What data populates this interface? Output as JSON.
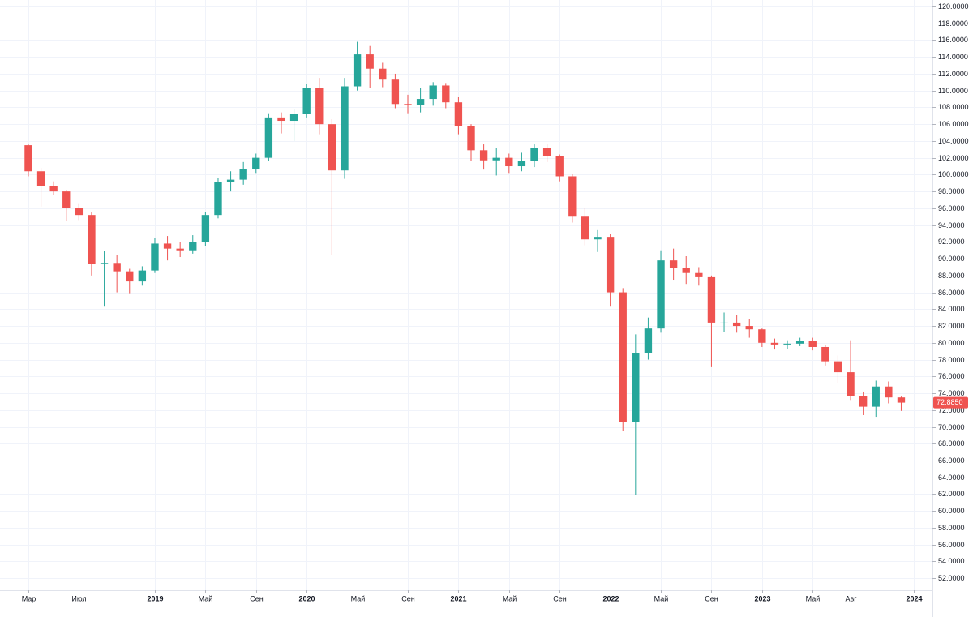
{
  "chart_data": {
    "type": "candlestick",
    "up_color": "#26a69a",
    "down_color": "#ef5350",
    "grid": true,
    "open": [
      103.5,
      100.4,
      98.6,
      98.0,
      96.0,
      95.2,
      89.4,
      89.5,
      88.5,
      87.3,
      88.6,
      91.8,
      91.2,
      91.0,
      92.0,
      95.2,
      99.1,
      99.4,
      100.7,
      102.0,
      106.8,
      106.4,
      107.2,
      110.3,
      106.0,
      100.5,
      110.5,
      114.3,
      112.6,
      111.3,
      108.4,
      108.3,
      109.0,
      110.6,
      108.6,
      105.8,
      102.9,
      101.7,
      102.0,
      101.0,
      101.6,
      103.2,
      102.2,
      99.8,
      95.0,
      92.3,
      92.6,
      86.0,
      70.6,
      78.8,
      81.7,
      89.8,
      88.9,
      88.3,
      87.8,
      82.4,
      82.4,
      82.0,
      81.6,
      80.0,
      79.8,
      79.9,
      80.2,
      79.5,
      77.8,
      76.5,
      73.7,
      72.4,
      74.8,
      73.5
    ],
    "high": [
      103.6,
      100.8,
      99.2,
      98.2,
      96.6,
      95.5,
      90.9,
      90.4,
      88.8,
      89.1,
      92.5,
      92.7,
      92.0,
      92.8,
      95.6,
      99.6,
      100.4,
      101.5,
      102.5,
      107.3,
      107.4,
      107.8,
      110.8,
      111.5,
      106.6,
      111.5,
      115.8,
      115.3,
      113.3,
      112.0,
      109.5,
      110.3,
      111.0,
      110.9,
      109.2,
      106.0,
      103.6,
      103.2,
      102.5,
      102.6,
      103.6,
      103.6,
      102.4,
      100.1,
      96.0,
      93.4,
      93.0,
      86.5,
      81.0,
      83.0,
      91.0,
      91.2,
      90.3,
      89.0,
      88.0,
      83.6,
      83.3,
      82.8,
      81.7,
      80.5,
      80.3,
      80.6,
      80.6,
      79.7,
      78.5,
      80.3,
      74.2,
      75.5,
      75.4,
      73.6
    ],
    "low": [
      99.8,
      96.2,
      97.6,
      94.5,
      94.6,
      88.0,
      84.3,
      86.0,
      85.9,
      86.8,
      88.3,
      89.8,
      90.2,
      90.6,
      91.5,
      94.8,
      98.0,
      98.8,
      100.2,
      101.6,
      104.9,
      104.0,
      106.8,
      104.8,
      90.4,
      99.5,
      110.0,
      110.3,
      110.4,
      107.9,
      107.3,
      107.4,
      108.2,
      107.9,
      104.8,
      101.6,
      100.6,
      99.9,
      100.2,
      100.4,
      100.9,
      101.5,
      99.2,
      94.3,
      91.6,
      90.8,
      84.3,
      69.5,
      61.9,
      78.0,
      81.2,
      87.5,
      87.0,
      86.8,
      77.1,
      81.3,
      81.2,
      80.6,
      79.5,
      79.2,
      79.3,
      79.6,
      79.1,
      77.3,
      75.2,
      73.2,
      71.4,
      71.2,
      72.8,
      71.9
    ],
    "close": [
      100.4,
      98.6,
      98.0,
      96.0,
      95.2,
      89.4,
      89.5,
      88.5,
      87.3,
      88.6,
      91.8,
      91.2,
      91.0,
      92.0,
      95.2,
      99.1,
      99.4,
      100.7,
      102.0,
      106.8,
      106.4,
      107.2,
      110.3,
      106.0,
      100.5,
      110.5,
      114.3,
      112.6,
      111.3,
      108.4,
      108.3,
      109.0,
      110.6,
      108.6,
      105.8,
      102.9,
      101.7,
      102.0,
      101.0,
      101.6,
      103.2,
      102.2,
      99.8,
      95.0,
      92.3,
      92.6,
      86.0,
      70.6,
      78.8,
      81.7,
      89.8,
      88.9,
      88.3,
      87.8,
      82.4,
      82.4,
      82.0,
      81.6,
      80.0,
      79.8,
      79.9,
      80.2,
      79.5,
      77.8,
      76.5,
      73.7,
      72.4,
      74.8,
      73.5,
      72.885
    ],
    "last_price": {
      "value": 72.885,
      "label": "72.8850"
    },
    "xlim": [
      -2.24,
      71.47
    ],
    "xticks": [
      {
        "value": 0,
        "label": "Мар"
      },
      {
        "value": 4,
        "label": "Июл"
      },
      {
        "value": 10,
        "label": "2019"
      },
      {
        "value": 14,
        "label": "Май"
      },
      {
        "value": 18,
        "label": "Сен"
      },
      {
        "value": 22,
        "label": "2020"
      },
      {
        "value": 26,
        "label": "Май"
      },
      {
        "value": 30,
        "label": "Сен"
      },
      {
        "value": 34,
        "label": "2021"
      },
      {
        "value": 38,
        "label": "Май"
      },
      {
        "value": 42,
        "label": "Сен"
      },
      {
        "value": 46,
        "label": "2022"
      },
      {
        "value": 50,
        "label": "Май"
      },
      {
        "value": 54,
        "label": "Сен"
      },
      {
        "value": 58,
        "label": "2023"
      },
      {
        "value": 62,
        "label": "Май"
      },
      {
        "value": 65,
        "label": "Авг"
      },
      {
        "value": 70,
        "label": "2024"
      }
    ],
    "ylim": [
      50.57,
      120.77
    ],
    "yticks": [
      {
        "value": 52,
        "label": "52.0000"
      },
      {
        "value": 54,
        "label": "54.0000"
      },
      {
        "value": 56,
        "label": "56.0000"
      },
      {
        "value": 58,
        "label": "58.0000"
      },
      {
        "value": 60,
        "label": "60.0000"
      },
      {
        "value": 62,
        "label": "62.0000"
      },
      {
        "value": 64,
        "label": "64.0000"
      },
      {
        "value": 66,
        "label": "66.0000"
      },
      {
        "value": 68,
        "label": "68.0000"
      },
      {
        "value": 70,
        "label": "70.0000"
      },
      {
        "value": 72,
        "label": "72.0000"
      },
      {
        "value": 74,
        "label": "74.0000"
      },
      {
        "value": 76,
        "label": "76.0000"
      },
      {
        "value": 78,
        "label": "78.0000"
      },
      {
        "value": 80,
        "label": "80.0000"
      },
      {
        "value": 82,
        "label": "82.0000"
      },
      {
        "value": 84,
        "label": "84.0000"
      },
      {
        "value": 86,
        "label": "86.0000"
      },
      {
        "value": 88,
        "label": "88.0000"
      },
      {
        "value": 90,
        "label": "90.0000"
      },
      {
        "value": 92,
        "label": "92.0000"
      },
      {
        "value": 94,
        "label": "94.0000"
      },
      {
        "value": 96,
        "label": "96.0000"
      },
      {
        "value": 98,
        "label": "98.0000"
      },
      {
        "value": 100,
        "label": "100.0000"
      },
      {
        "value": 102,
        "label": "102.0000"
      },
      {
        "value": 104,
        "label": "104.0000"
      },
      {
        "value": 106,
        "label": "106.0000"
      },
      {
        "value": 108,
        "label": "108.0000"
      },
      {
        "value": 110,
        "label": "110.0000"
      },
      {
        "value": 112,
        "label": "112.0000"
      },
      {
        "value": 114,
        "label": "114.0000"
      },
      {
        "value": 116,
        "label": "116.0000"
      },
      {
        "value": 118,
        "label": "118.0000"
      },
      {
        "value": 120,
        "label": "120.0000"
      }
    ]
  }
}
